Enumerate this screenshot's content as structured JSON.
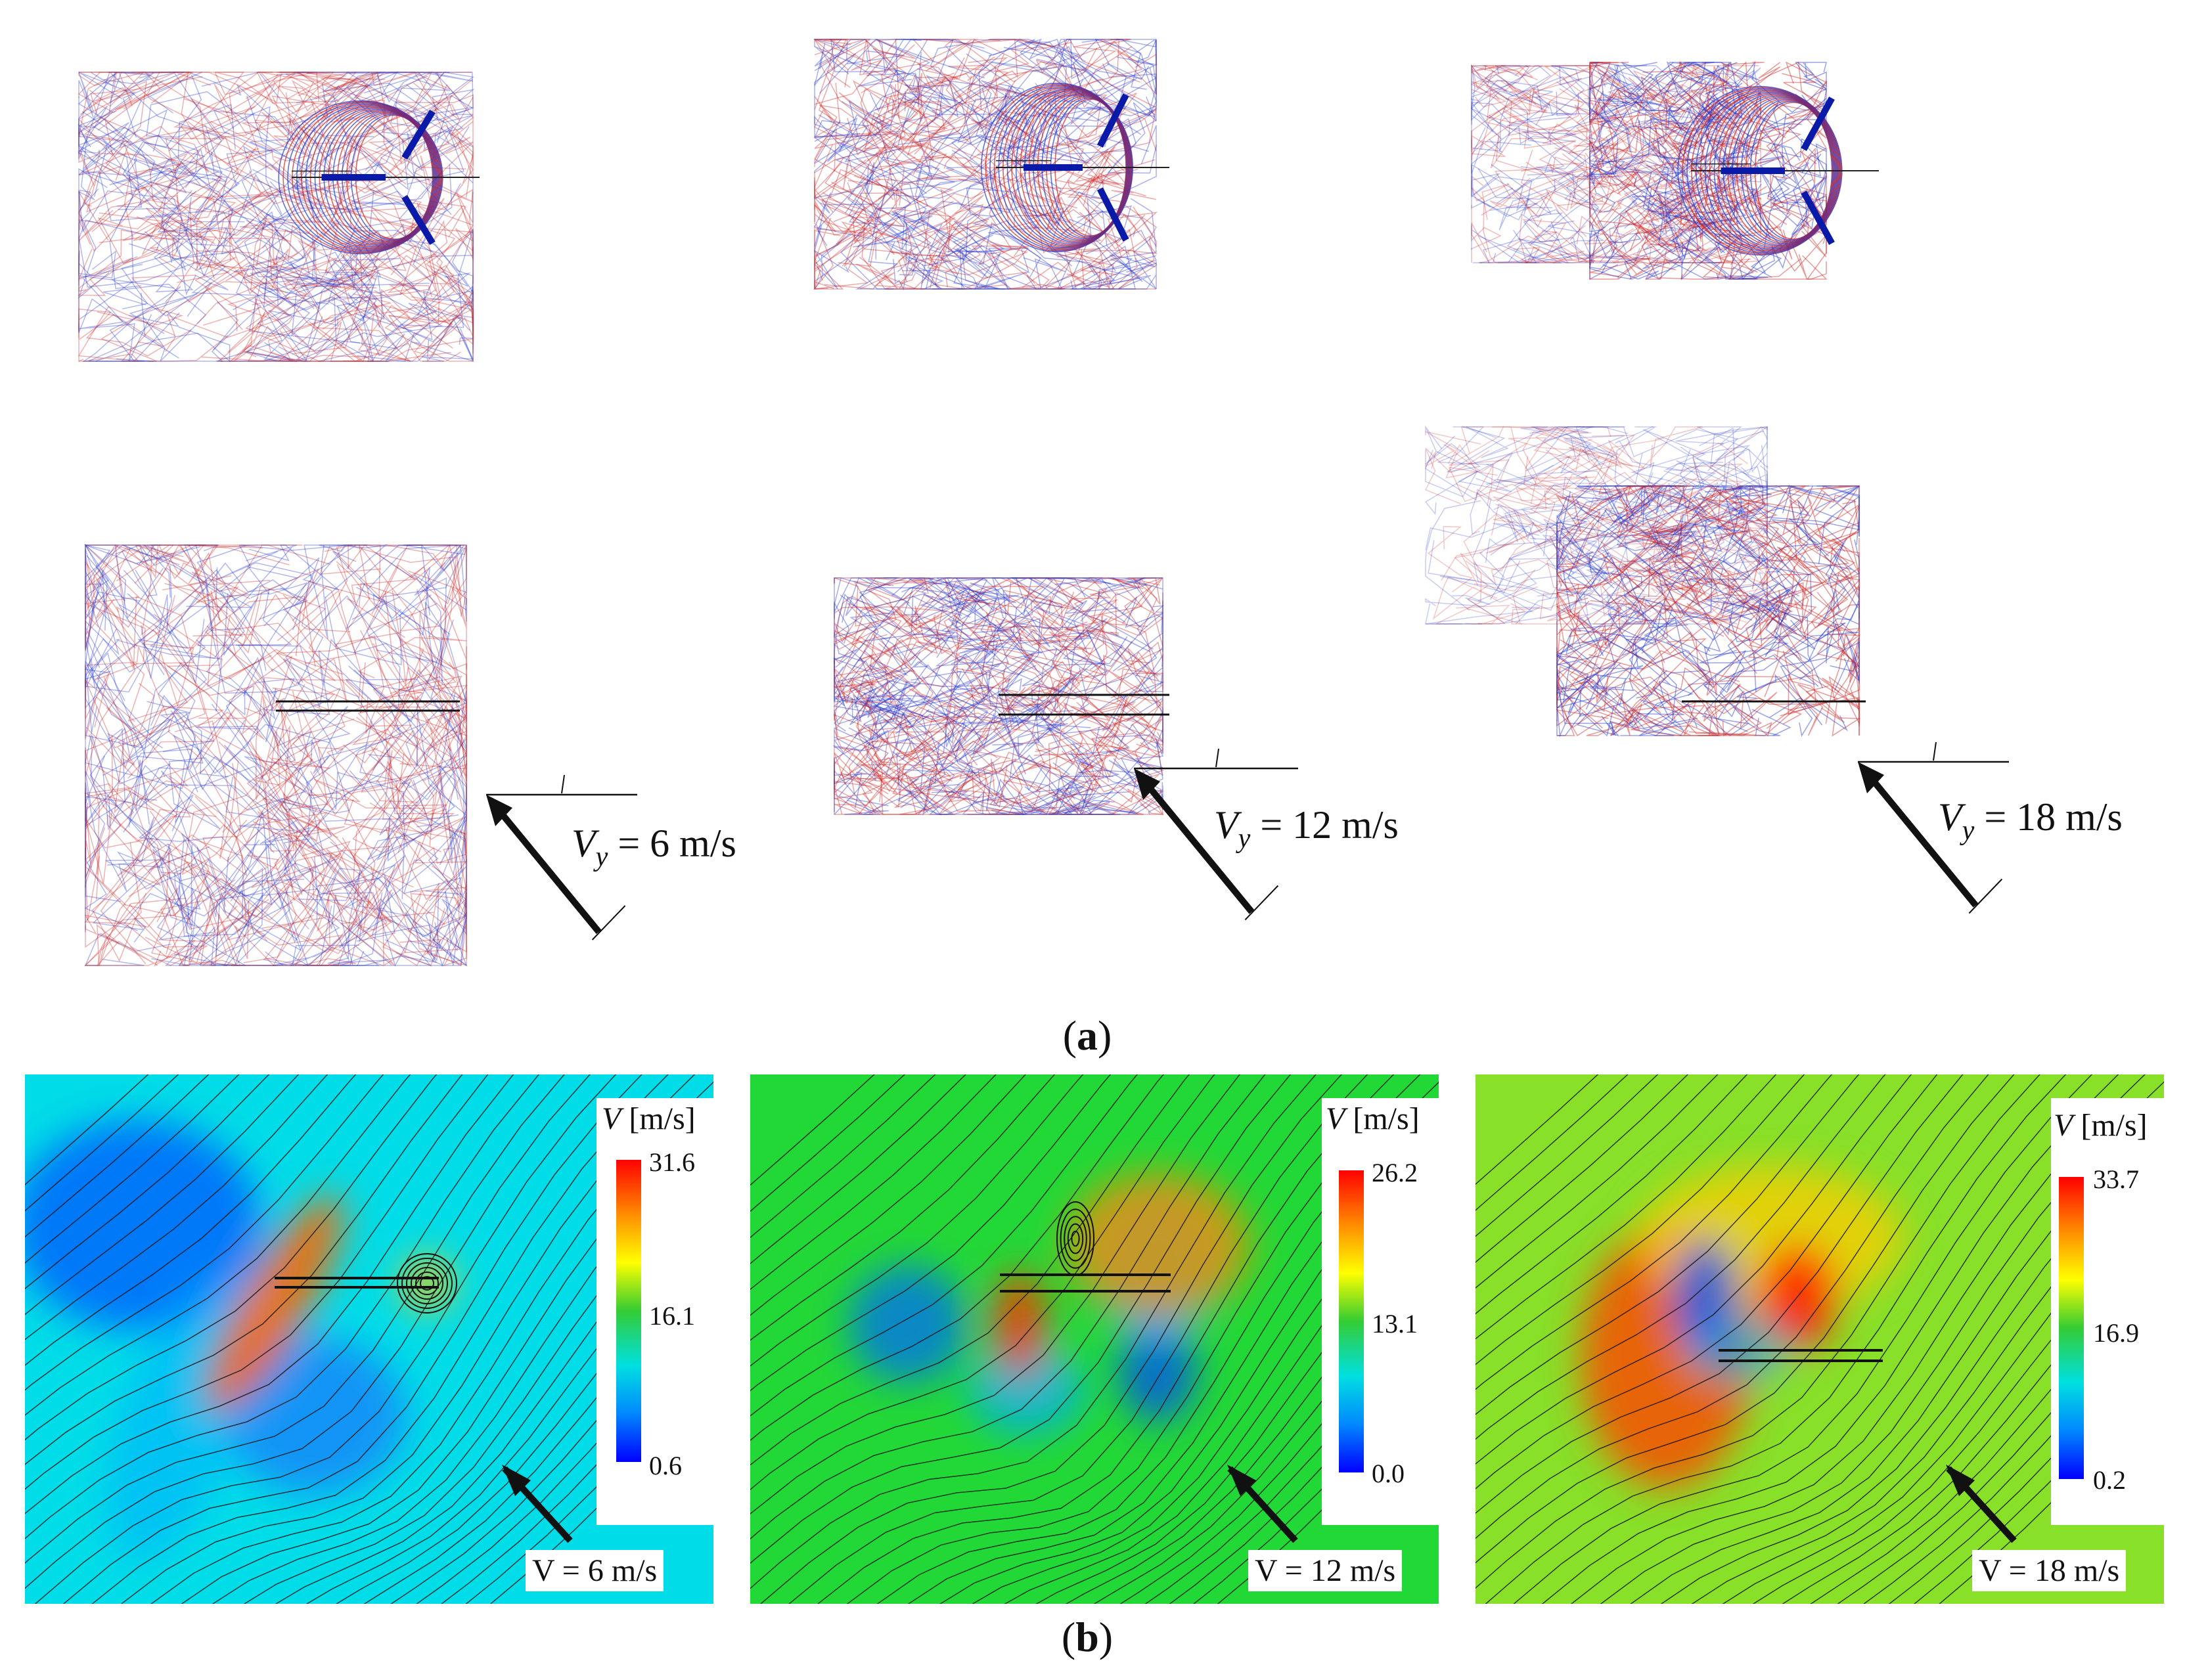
{
  "wake_panels": [
    {
      "vy_symbol": "V",
      "vy_subscript": "y",
      "vy_value": "= 6 m/s"
    },
    {
      "vy_symbol": "V",
      "vy_subscript": "y",
      "vy_value": "= 12 m/s"
    },
    {
      "vy_symbol": "V",
      "vy_subscript": "y",
      "vy_value": "= 18 m/s"
    }
  ],
  "caption_a": {
    "open": "(",
    "letter": "a",
    "close": ")"
  },
  "caption_b": {
    "open": "(",
    "letter": "b",
    "close": ")"
  },
  "flow_panels": [
    {
      "background": "#00dde8",
      "colorbar_symbol": "V",
      "colorbar_unit": "[m/s]",
      "max": "31.6",
      "mid": "16.1",
      "min": "0.6",
      "velocity_label": "V = 6 m/s"
    },
    {
      "background": "#22d836",
      "colorbar_symbol": "V",
      "colorbar_unit": "[m/s]",
      "max": "26.2",
      "mid": "13.1",
      "min": "0.0",
      "velocity_label": "V = 12 m/s"
    },
    {
      "background": "#88e028",
      "colorbar_symbol": "V",
      "colorbar_unit": "[m/s]",
      "max": "33.7",
      "mid": "16.9",
      "min": "0.2",
      "velocity_label": "V = 18 m/s"
    }
  ],
  "colors": {
    "wake_red": "#cc2222",
    "wake_blue": "#2233cc",
    "blade": "#0a1aa8"
  }
}
